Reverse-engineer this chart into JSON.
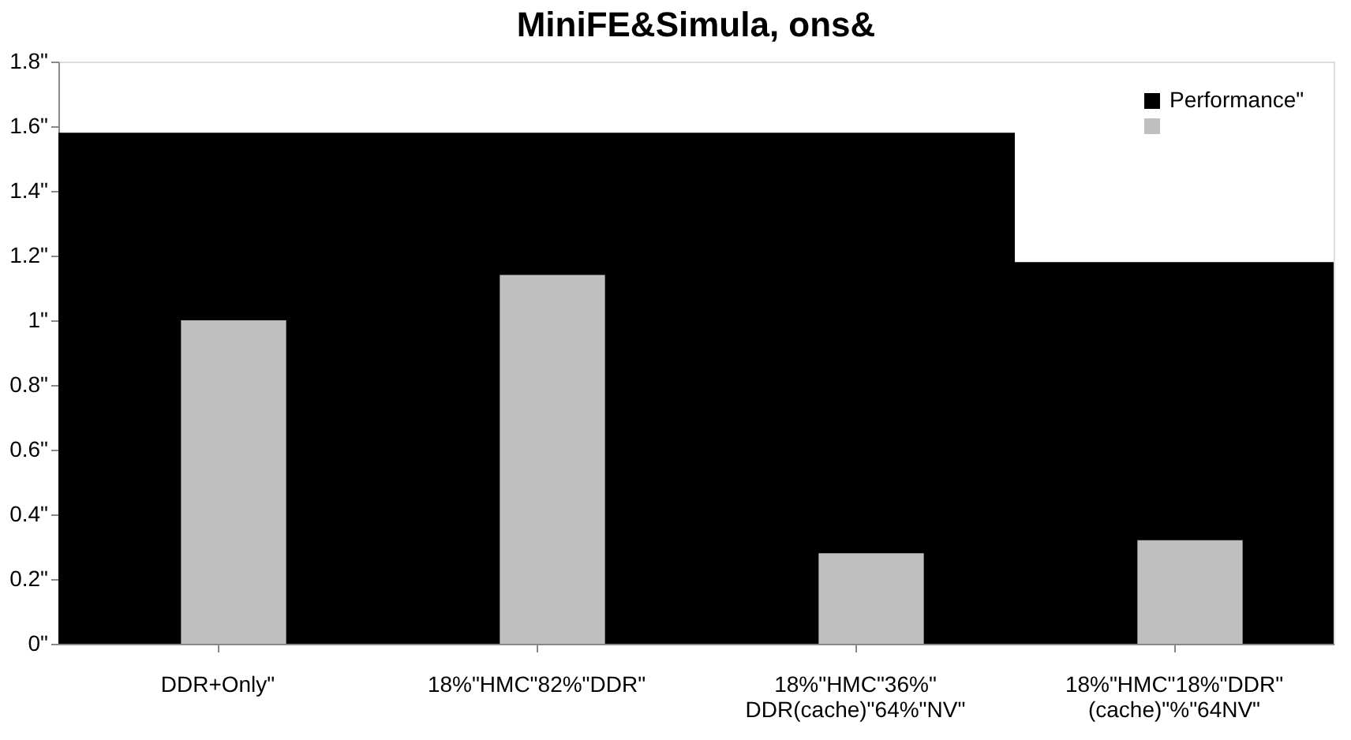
{
  "chart_data": {
    "type": "bar",
    "title": "MiniFE&Simula, ons&",
    "categories": [
      "DDR+Only\"",
      "18%\"HMC\"82%\"DDR\"",
      "18%\"HMC\"36%\"\nDDR(cache)\"64%\"NV\"",
      "18%\"HMC\"18%\"DDR\"\n(cache)\"%\"64NV\""
    ],
    "series": [
      {
        "name": "Performance\"",
        "color": "#000000",
        "values": [
          1.58,
          1.58,
          1.58,
          1.18
        ]
      },
      {
        "color": "#bfbfbf",
        "values": [
          1.0,
          1.14,
          0.28,
          0.32
        ]
      }
    ],
    "ylim": [
      0,
      1.8
    ],
    "yticks": [
      {
        "value": 0,
        "label": "0\""
      },
      {
        "value": 0.2,
        "label": "0.2\""
      },
      {
        "value": 0.4,
        "label": "0.4\""
      },
      {
        "value": 0.6,
        "label": "0.6\""
      },
      {
        "value": 0.8,
        "label": "0.8\""
      },
      {
        "value": 1,
        "label": "1\""
      },
      {
        "value": 1.2,
        "label": "1.2\""
      },
      {
        "value": 1.4,
        "label": "1.4\""
      },
      {
        "value": 1.6,
        "label": "1.6\""
      },
      {
        "value": 1.8,
        "label": "1.8\""
      }
    ],
    "grid": false,
    "legend": "top right"
  }
}
